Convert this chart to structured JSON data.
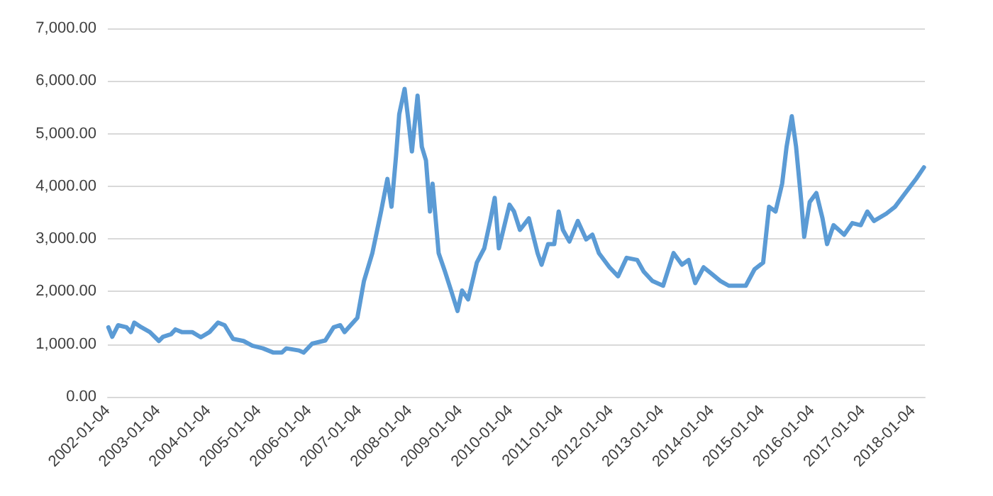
{
  "chart_data": {
    "type": "line",
    "color": "#5b9bd5",
    "grid": "y",
    "marker": "none",
    "line_style": "solid",
    "xlim": [
      "2002-01-04",
      "2018-03-31"
    ],
    "xticks": [
      "2002-01-04",
      "2003-01-04",
      "2004-01-04",
      "2005-01-04",
      "2006-01-04",
      "2007-01-04",
      "2008-01-04",
      "2009-01-04",
      "2010-01-04",
      "2011-01-04",
      "2012-01-04",
      "2013-01-04",
      "2014-01-04",
      "2015-01-04",
      "2016-01-04",
      "2017-01-04",
      "2018-01-04"
    ],
    "ylim": [
      0,
      7000
    ],
    "yticks": [
      {
        "value": 0,
        "label": "0.00"
      },
      {
        "value": 1000,
        "label": "1,000.00"
      },
      {
        "value": 2000,
        "label": "2,000.00"
      },
      {
        "value": 3000,
        "label": "3,000.00"
      },
      {
        "value": 4000,
        "label": "4,000.00"
      },
      {
        "value": 5000,
        "label": "5,000.00"
      },
      {
        "value": 6000,
        "label": "6,000.00"
      },
      {
        "value": 7000,
        "label": "7,000.00"
      }
    ],
    "x": [
      "2002-01-08",
      "2002-02-05",
      "2002-03-20",
      "2002-05-20",
      "2002-06-20",
      "2002-07-15",
      "2002-09-05",
      "2002-11-05",
      "2003-01-10",
      "2003-02-08",
      "2003-04-08",
      "2003-05-10",
      "2003-06-25",
      "2003-09-08",
      "2003-11-10",
      "2004-01-12",
      "2004-03-14",
      "2004-05-01",
      "2004-07-01",
      "2004-09-15",
      "2004-11-18",
      "2005-02-03",
      "2005-04-20",
      "2005-06-20",
      "2005-07-22",
      "2005-10-22",
      "2005-11-25",
      "2006-01-26",
      "2006-05-01",
      "2006-07-01",
      "2006-08-18",
      "2006-09-18",
      "2006-12-20",
      "2007-02-06",
      "2007-04-08",
      "2007-06-10",
      "2007-07-26",
      "2007-08-25",
      "2007-09-27",
      "2007-10-20",
      "2007-11-28",
      "2007-12-28",
      "2008-01-20",
      "2008-03-01",
      "2008-04-01",
      "2008-05-01",
      "2008-05-30",
      "2008-06-18",
      "2008-08-01",
      "2008-09-16",
      "2008-10-30",
      "2008-12-16",
      "2009-01-18",
      "2009-03-03",
      "2009-04-12",
      "2009-05-05",
      "2009-06-28",
      "2009-08-10",
      "2009-09-12",
      "2009-10-12",
      "2009-12-28",
      "2010-01-30",
      "2010-03-14",
      "2010-05-18",
      "2010-07-20",
      "2010-08-18",
      "2010-10-04",
      "2010-11-18",
      "2010-12-20",
      "2011-01-20",
      "2011-03-08",
      "2011-05-08",
      "2011-07-08",
      "2011-08-22",
      "2011-10-08",
      "2011-12-24",
      "2012-02-24",
      "2012-04-26",
      "2012-07-12",
      "2012-08-28",
      "2012-10-30",
      "2013-01-16",
      "2013-04-02",
      "2013-06-02",
      "2013-07-20",
      "2013-09-06",
      "2013-11-06",
      "2014-01-06",
      "2014-03-08",
      "2014-05-08",
      "2014-07-08",
      "2014-09-08",
      "2014-11-10",
      "2015-01-12",
      "2015-02-24",
      "2015-04-12",
      "2015-05-30",
      "2015-07-01",
      "2015-08-08",
      "2015-09-08",
      "2015-10-16",
      "2015-11-06",
      "2015-12-16",
      "2016-02-02",
      "2016-03-18",
      "2016-04-20",
      "2016-06-06",
      "2016-08-22",
      "2016-10-20",
      "2016-12-20",
      "2017-02-06",
      "2017-03-26",
      "2017-06-24",
      "2017-08-26",
      "2017-10-28",
      "2018-01-26",
      "2018-03-24"
    ],
    "values": [
      1320,
      1140,
      1360,
      1320,
      1230,
      1410,
      1320,
      1230,
      1060,
      1140,
      1190,
      1280,
      1230,
      1230,
      1130,
      1230,
      1410,
      1360,
      1100,
      1060,
      970,
      920,
      840,
      840,
      920,
      880,
      840,
      1010,
      1070,
      1320,
      1360,
      1230,
      1500,
      2200,
      2730,
      3520,
      4140,
      3610,
      4580,
      5370,
      5850,
      5190,
      4660,
      5720,
      4750,
      4490,
      3520,
      4050,
      2730,
      2380,
      2020,
      1630,
      2020,
      1850,
      2290,
      2550,
      2820,
      3340,
      3780,
      2820,
      3650,
      3520,
      3170,
      3390,
      2730,
      2510,
      2900,
      2900,
      3520,
      3170,
      2950,
      3340,
      2990,
      3080,
      2730,
      2460,
      2290,
      2640,
      2600,
      2380,
      2200,
      2110,
      2730,
      2510,
      2600,
      2160,
      2460,
      2330,
      2200,
      2110,
      2110,
      2110,
      2420,
      2550,
      3610,
      3520,
      4050,
      4750,
      5330,
      4750,
      3700,
      3040,
      3700,
      3870,
      3390,
      2900,
      3260,
      3080,
      3300,
      3260,
      3520,
      3340,
      3480,
      3610,
      3830,
      4140,
      4360
    ]
  }
}
